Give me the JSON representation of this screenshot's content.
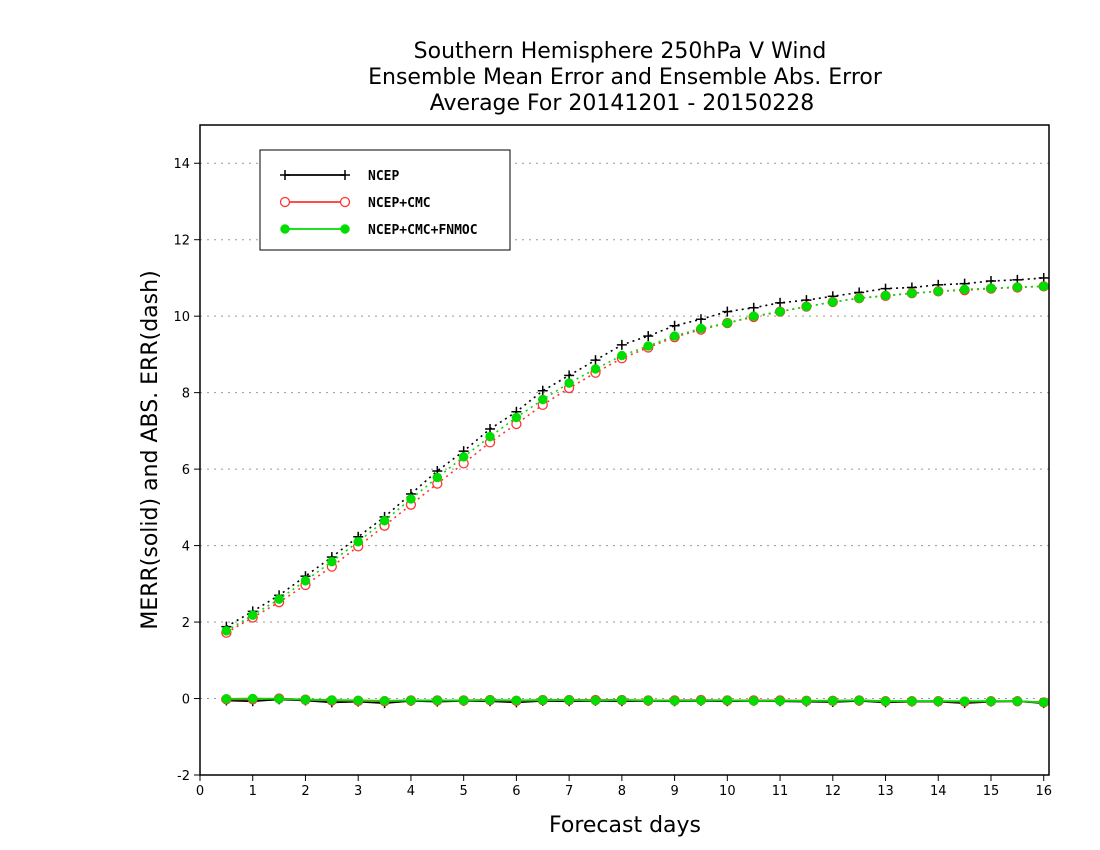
{
  "chart_data": {
    "type": "line",
    "title": [
      "Southern Hemisphere 250hPa V Wind",
      "Ensemble Mean Error and Ensemble Abs. Error",
      "Average For 20141201 - 20150228"
    ],
    "xlabel": "Forecast days",
    "ylabel": "MERR(solid) and ABS. ERR(dash)",
    "xlim": [
      0,
      16.1
    ],
    "ylim": [
      -2,
      15
    ],
    "xticks": [
      "0",
      "1",
      "2",
      "3",
      "4",
      "5",
      "6",
      "7",
      "8",
      "9",
      "10",
      "11",
      "12",
      "13",
      "14",
      "15",
      "16"
    ],
    "yticks": [
      "-2",
      "0",
      "2",
      "4",
      "6",
      "8",
      "10",
      "12",
      "14"
    ],
    "grid": "horizontal dotted",
    "legend_position": "top-left",
    "x": [
      0.5,
      1,
      1.5,
      2,
      2.5,
      3,
      3.5,
      4,
      4.5,
      5,
      5.5,
      6,
      6.5,
      7,
      7.5,
      8,
      8.5,
      9,
      9.5,
      10,
      10.5,
      11,
      11.5,
      12,
      12.5,
      13,
      13.5,
      14,
      14.5,
      15,
      15.5,
      16
    ],
    "series": [
      {
        "name": "NCEP",
        "color": "#000000",
        "marker": "plus",
        "abs_error": [
          1.88,
          2.28,
          2.7,
          3.2,
          3.7,
          4.23,
          4.75,
          5.35,
          5.95,
          6.47,
          7.05,
          7.5,
          8.05,
          8.45,
          8.85,
          9.25,
          9.48,
          9.75,
          9.92,
          10.12,
          10.22,
          10.35,
          10.42,
          10.52,
          10.62,
          10.72,
          10.75,
          10.82,
          10.85,
          10.92,
          10.95,
          11.0
        ],
        "mean_error": [
          -0.05,
          -0.07,
          -0.02,
          -0.05,
          -0.1,
          -0.08,
          -0.12,
          -0.06,
          -0.08,
          -0.06,
          -0.07,
          -0.1,
          -0.06,
          -0.07,
          -0.06,
          -0.07,
          -0.06,
          -0.07,
          -0.06,
          -0.07,
          -0.06,
          -0.07,
          -0.08,
          -0.09,
          -0.06,
          -0.1,
          -0.08,
          -0.08,
          -0.12,
          -0.08,
          -0.07,
          -0.12
        ]
      },
      {
        "name": "NCEP+CMC",
        "color": "#ff3333",
        "marker": "open-circle",
        "abs_error": [
          1.72,
          2.12,
          2.52,
          2.97,
          3.45,
          3.98,
          4.52,
          5.07,
          5.62,
          6.15,
          6.7,
          7.18,
          7.68,
          8.12,
          8.52,
          8.9,
          9.18,
          9.45,
          9.65,
          9.82,
          9.98,
          10.12,
          10.25,
          10.37,
          10.47,
          10.53,
          10.6,
          10.65,
          10.68,
          10.72,
          10.75,
          10.78
        ],
        "mean_error": [
          -0.02,
          -0.02,
          0.0,
          -0.03,
          -0.05,
          -0.06,
          -0.07,
          -0.05,
          -0.05,
          -0.05,
          -0.04,
          -0.06,
          -0.04,
          -0.04,
          -0.04,
          -0.04,
          -0.05,
          -0.05,
          -0.04,
          -0.05,
          -0.05,
          -0.05,
          -0.06,
          -0.06,
          -0.05,
          -0.07,
          -0.07,
          -0.07,
          -0.08,
          -0.07,
          -0.07,
          -0.1
        ]
      },
      {
        "name": "NCEP+CMC+FNMOC",
        "color": "#00dd00",
        "marker": "filled-circle",
        "abs_error": [
          1.77,
          2.18,
          2.6,
          3.08,
          3.58,
          4.1,
          4.65,
          5.22,
          5.78,
          6.32,
          6.85,
          7.35,
          7.82,
          8.25,
          8.62,
          8.97,
          9.22,
          9.48,
          9.68,
          9.82,
          10.0,
          10.12,
          10.25,
          10.37,
          10.47,
          10.54,
          10.6,
          10.65,
          10.7,
          10.73,
          10.76,
          10.78
        ],
        "mean_error": [
          -0.01,
          0.0,
          -0.01,
          -0.03,
          -0.04,
          -0.05,
          -0.06,
          -0.05,
          -0.05,
          -0.05,
          -0.04,
          -0.05,
          -0.04,
          -0.04,
          -0.05,
          -0.04,
          -0.05,
          -0.06,
          -0.05,
          -0.05,
          -0.06,
          -0.06,
          -0.06,
          -0.06,
          -0.05,
          -0.07,
          -0.07,
          -0.07,
          -0.07,
          -0.07,
          -0.07,
          -0.1
        ]
      }
    ]
  }
}
